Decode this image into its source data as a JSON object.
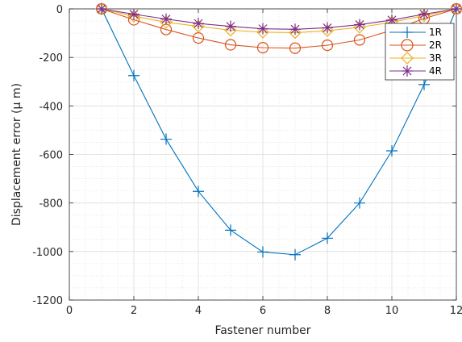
{
  "chart_data": {
    "type": "line",
    "xlabel": "Fastener number",
    "ylabel": "Displacement error (μ m)",
    "xlim": [
      0,
      12
    ],
    "ylim": [
      -1200,
      0
    ],
    "x_ticks": [
      0,
      2,
      4,
      6,
      8,
      10,
      12
    ],
    "y_ticks": [
      0,
      -200,
      -400,
      -600,
      -800,
      -1000,
      -1200
    ],
    "grid": true,
    "minor_grid": true,
    "legend_position": "top-right",
    "series": [
      {
        "name": "1R",
        "color": "#0072BD",
        "marker": "plus",
        "x": [
          1,
          2,
          3,
          4,
          5,
          6,
          7,
          8,
          9,
          10,
          11,
          12
        ],
        "y": [
          0,
          -275,
          -537,
          -752,
          -912,
          -1002,
          -1013,
          -945,
          -800,
          -585,
          -312,
          0
        ]
      },
      {
        "name": "2R",
        "color": "#D95319",
        "marker": "circle",
        "x": [
          1,
          2,
          3,
          4,
          5,
          6,
          7,
          8,
          9,
          10,
          11,
          12
        ],
        "y": [
          0,
          -45,
          -85,
          -120,
          -148,
          -160,
          -162,
          -150,
          -128,
          -88,
          -40,
          0
        ]
      },
      {
        "name": "3R",
        "color": "#EDB120",
        "marker": "diamond",
        "x": [
          1,
          2,
          3,
          4,
          5,
          6,
          7,
          8,
          9,
          10,
          11,
          12
        ],
        "y": [
          0,
          -30,
          -55,
          -72,
          -88,
          -96,
          -98,
          -90,
          -76,
          -55,
          -28,
          0
        ]
      },
      {
        "name": "4R",
        "color": "#7E2F8E",
        "marker": "star",
        "x": [
          1,
          2,
          3,
          4,
          5,
          6,
          7,
          8,
          9,
          10,
          11,
          12
        ],
        "y": [
          0,
          -22,
          -42,
          -60,
          -72,
          -82,
          -84,
          -78,
          -65,
          -46,
          -22,
          0
        ]
      }
    ]
  }
}
